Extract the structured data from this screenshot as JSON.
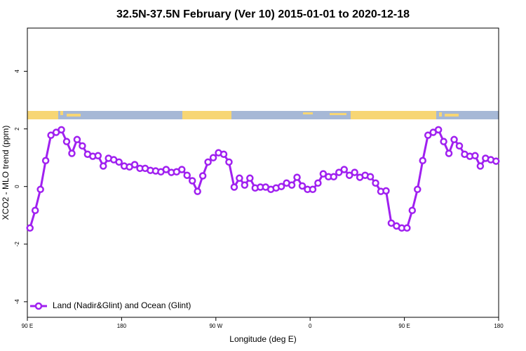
{
  "chart_data": {
    "type": "line",
    "title": "32.5N-37.5N February (Ver 10)   2015-01-01 to 2020-12-18",
    "x_label": "Longitude (deg E)",
    "y_label": "XCO2 - MLO trend (ppm)",
    "xlim": [
      90,
      540
    ],
    "ylim": [
      -4.54,
      5.5
    ],
    "xticks": [
      {
        "value": 90,
        "label": "90 E"
      },
      180,
      {
        "value": 270,
        "label": "90 W"
      },
      {
        "value": 360,
        "label": "0"
      },
      {
        "value": 450,
        "label": "90 E"
      },
      {
        "value": 540,
        "label": "180"
      }
    ],
    "yticks": [
      -4,
      -2,
      0,
      2,
      4
    ],
    "legend": "bottomleft",
    "x": [
      92.5,
      97.5,
      102.5,
      107.5,
      112.5,
      117.5,
      122.5,
      127.5,
      132.5,
      137.5,
      142.5,
      147.5,
      152.5,
      157.5,
      162.5,
      167.5,
      172.5,
      177.5,
      182.5,
      187.5,
      192.5,
      197.5,
      202.5,
      207.5,
      212.5,
      217.5,
      222.5,
      227.5,
      232.5,
      237.5,
      242.5,
      247.5,
      252.5,
      257.5,
      262.5,
      267.5,
      272.5,
      277.5,
      282.5,
      287.5,
      292.5,
      297.5,
      302.5,
      307.5,
      312.5,
      317.5,
      322.5,
      327.5,
      332.5,
      337.5,
      342.5,
      347.5,
      352.5,
      357.5,
      362.5,
      367.5,
      372.5,
      377.5,
      382.5,
      387.5,
      392.5,
      397.5,
      402.5,
      407.5,
      412.5,
      417.5,
      422.5,
      427.5,
      432.5,
      437.5,
      442.5,
      447.5,
      452.5,
      457.5,
      462.5,
      467.5,
      472.5,
      477.5,
      482.5,
      487.5,
      492.5,
      497.5,
      502.5,
      507.5,
      512.5,
      517.5,
      522.5,
      527.5,
      532.5,
      537.5
    ],
    "series": [
      {
        "name": "Land (Nadir&Glint) and Ocean (Glint)",
        "color": "#a020f0",
        "values": [
          -1.44,
          -0.83,
          -0.1,
          0.9,
          1.78,
          1.88,
          1.97,
          1.56,
          1.15,
          1.63,
          1.41,
          1.12,
          1.05,
          1.07,
          0.71,
          0.98,
          0.93,
          0.85,
          0.71,
          0.68,
          0.76,
          0.63,
          0.63,
          0.56,
          0.54,
          0.51,
          0.59,
          0.49,
          0.51,
          0.59,
          0.39,
          0.2,
          -0.17,
          0.37,
          0.85,
          1.0,
          1.17,
          1.12,
          0.85,
          -0.02,
          0.29,
          0.05,
          0.29,
          -0.05,
          -0.02,
          -0.02,
          -0.1,
          -0.05,
          0,
          0.12,
          0.05,
          0.32,
          0.02,
          -0.1,
          -0.1,
          0.12,
          0.44,
          0.34,
          0.34,
          0.49,
          0.59,
          0.39,
          0.49,
          0.32,
          0.39,
          0.34,
          0.12,
          -0.17,
          -0.15,
          -1.27,
          -1.37,
          -1.44,
          -1.44,
          -0.83,
          -0.1,
          0.9,
          1.78,
          1.88,
          1.97,
          1.56,
          1.15,
          1.63,
          1.41,
          1.12,
          1.05,
          1.07,
          0.71,
          0.98,
          0.93,
          0.88
        ]
      }
    ]
  }
}
